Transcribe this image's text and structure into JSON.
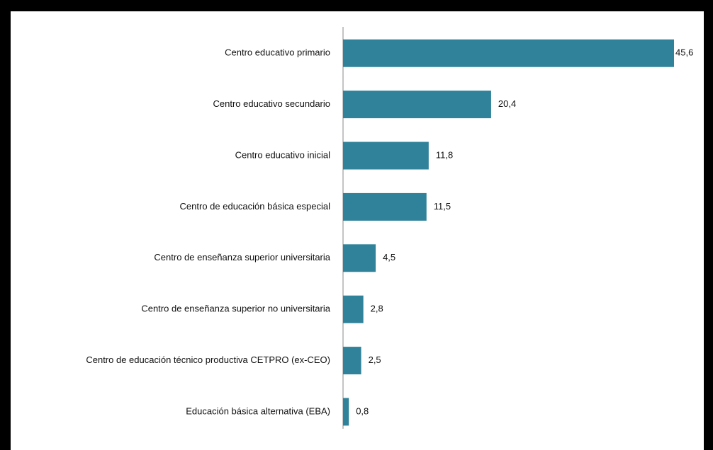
{
  "chart_data": {
    "type": "bar",
    "orientation": "horizontal",
    "color": "#2f8299",
    "categories": [
      "Centro educativo primario",
      "Centro educativo secundario",
      "Centro educativo inicial",
      "Centro de educación básica especial",
      "Centro de enseñanza superior universitaria",
      "Centro de enseñanza superior no universitaria",
      "Centro de educación técnico productiva CETPRO (ex-CEO)",
      "Educación básica alternativa (EBA)"
    ],
    "values": [
      45.6,
      20.4,
      11.8,
      11.5,
      4.5,
      2.8,
      2.5,
      0.8
    ],
    "value_labels": [
      "45,6",
      "20,4",
      "11,8",
      "11,5",
      "4,5",
      "2,8",
      "2,5",
      "0,8"
    ]
  }
}
